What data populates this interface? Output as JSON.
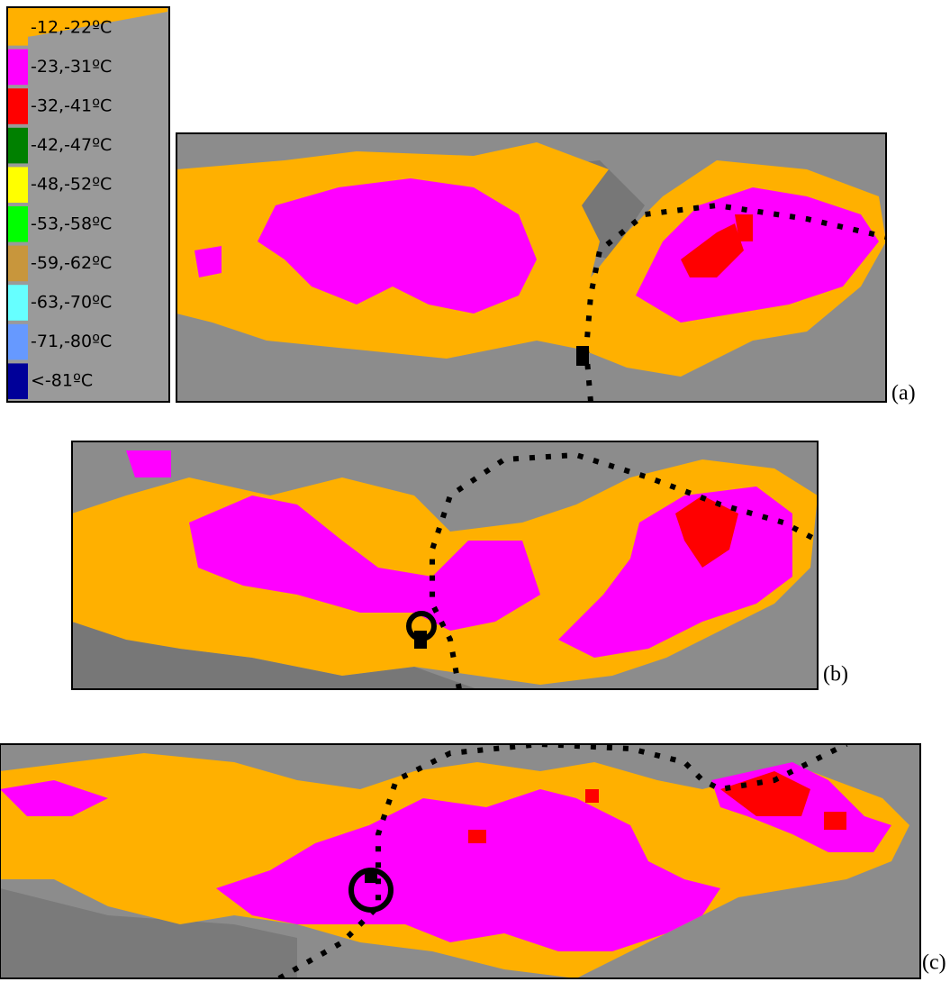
{
  "legend": {
    "items": [
      {
        "label": "-12,-22ºC",
        "color": "#ffb000"
      },
      {
        "label": "-23,-31ºC",
        "color": "#ff00ff"
      },
      {
        "label": "-32,-41ºC",
        "color": "#ff0000"
      },
      {
        "label": "-42,-47ºC",
        "color": "#008000"
      },
      {
        "label": "-48,-52ºC",
        "color": "#ffff00"
      },
      {
        "label": "-53,-58ºC",
        "color": "#00ff00"
      },
      {
        "label": "-59,-62ºC",
        "color": "#c8963c"
      },
      {
        "label": "-63,-70ºC",
        "color": "#66ffff"
      },
      {
        "label": "-71,-80ºC",
        "color": "#6699ff"
      },
      {
        "label": "<-81ºC",
        "color": "#000099"
      }
    ]
  },
  "panels": [
    {
      "label": "(a)"
    },
    {
      "label": "(b)"
    },
    {
      "label": "(c)"
    }
  ]
}
